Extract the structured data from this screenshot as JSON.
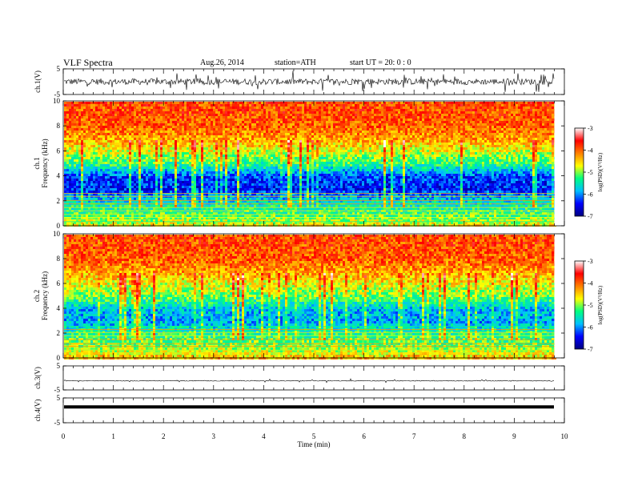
{
  "header": {
    "title": "VLF  Spectra",
    "date": "Aug.26, 2014",
    "station": "station=ATH",
    "start": "start  UT  =   20: 0  : 0"
  },
  "chart_data": {
    "type": "heatmap",
    "x_axis": {
      "label": "Time  (min)",
      "range": [
        0,
        10
      ],
      "ticks": [
        "0",
        "1",
        "2",
        "3",
        "4",
        "5",
        "6",
        "7",
        "8",
        "9",
        "10"
      ],
      "data_end_min": 9.8
    },
    "panels": [
      {
        "kind": "waveform",
        "ylabel": "ch.1(V)",
        "yrange": [
          -5,
          5
        ],
        "yticks": [
          "5",
          "-5"
        ],
        "noise_amplitude_v": 1.2,
        "offset_v": 0
      },
      {
        "kind": "spectrogram",
        "ylabel_channel": "ch.1",
        "ylabel": "Frequency  (kHz)",
        "yrange": [
          0,
          10
        ],
        "yticks": [
          "0",
          "2",
          "4",
          "6",
          "8",
          "10"
        ],
        "colorbar": {
          "label": "log(PSD)(V²/Hz)",
          "range": [
            -7,
            -3
          ],
          "ticks": [
            "-3",
            "-4",
            "-5",
            "-6",
            "-7"
          ],
          "colors": [
            "#000080",
            "#0000ff",
            "#00c0ff",
            "#00ff80",
            "#ffff00",
            "#ff8000",
            "#ff0000",
            "#ffffff"
          ]
        },
        "levels_by_freq_khz": [
          [
            0,
            -4.6
          ],
          [
            1,
            -5.2
          ],
          [
            2,
            -5.6
          ],
          [
            3,
            -6.4
          ],
          [
            4,
            -6.3
          ],
          [
            5,
            -5.3
          ],
          [
            6,
            -4.8
          ],
          [
            7,
            -4.3
          ],
          [
            8,
            -4.0
          ],
          [
            9,
            -3.9
          ],
          [
            10,
            -3.9
          ]
        ]
      },
      {
        "kind": "spectrogram",
        "ylabel_channel": "ch.2",
        "ylabel": "Frequency  (kHz)",
        "yrange": [
          0,
          10
        ],
        "yticks": [
          "0",
          "2",
          "4",
          "6",
          "8",
          "10"
        ],
        "colorbar": {
          "label": "log(PSD)(V²/Hz)",
          "range": [
            -7,
            -3
          ],
          "ticks": [
            "-3",
            "-4",
            "-5",
            "-6",
            "-7"
          ],
          "colors": [
            "#000080",
            "#0000ff",
            "#00c0ff",
            "#00ff80",
            "#ffff00",
            "#ff8000",
            "#ff0000",
            "#ffffff"
          ]
        },
        "levels_by_freq_khz": [
          [
            0,
            -4.4
          ],
          [
            1,
            -5.0
          ],
          [
            2,
            -5.3
          ],
          [
            3,
            -5.9
          ],
          [
            4,
            -5.8
          ],
          [
            5,
            -5.1
          ],
          [
            6,
            -4.7
          ],
          [
            7,
            -4.3
          ],
          [
            8,
            -4.0
          ],
          [
            9,
            -3.9
          ],
          [
            10,
            -3.9
          ]
        ]
      },
      {
        "kind": "waveform",
        "ylabel": "ch.3(V)",
        "yrange": [
          -5,
          5
        ],
        "yticks": [
          "5",
          "-5"
        ],
        "noise_amplitude_v": 0.15,
        "offset_v": -1.2
      },
      {
        "kind": "waveform",
        "ylabel": "ch.4(V)",
        "yrange": [
          -5,
          5
        ],
        "yticks": [
          "5",
          "-5"
        ],
        "noise_amplitude_v": 0.0,
        "offset_v": 1.4,
        "trace_style": "thick"
      }
    ]
  }
}
